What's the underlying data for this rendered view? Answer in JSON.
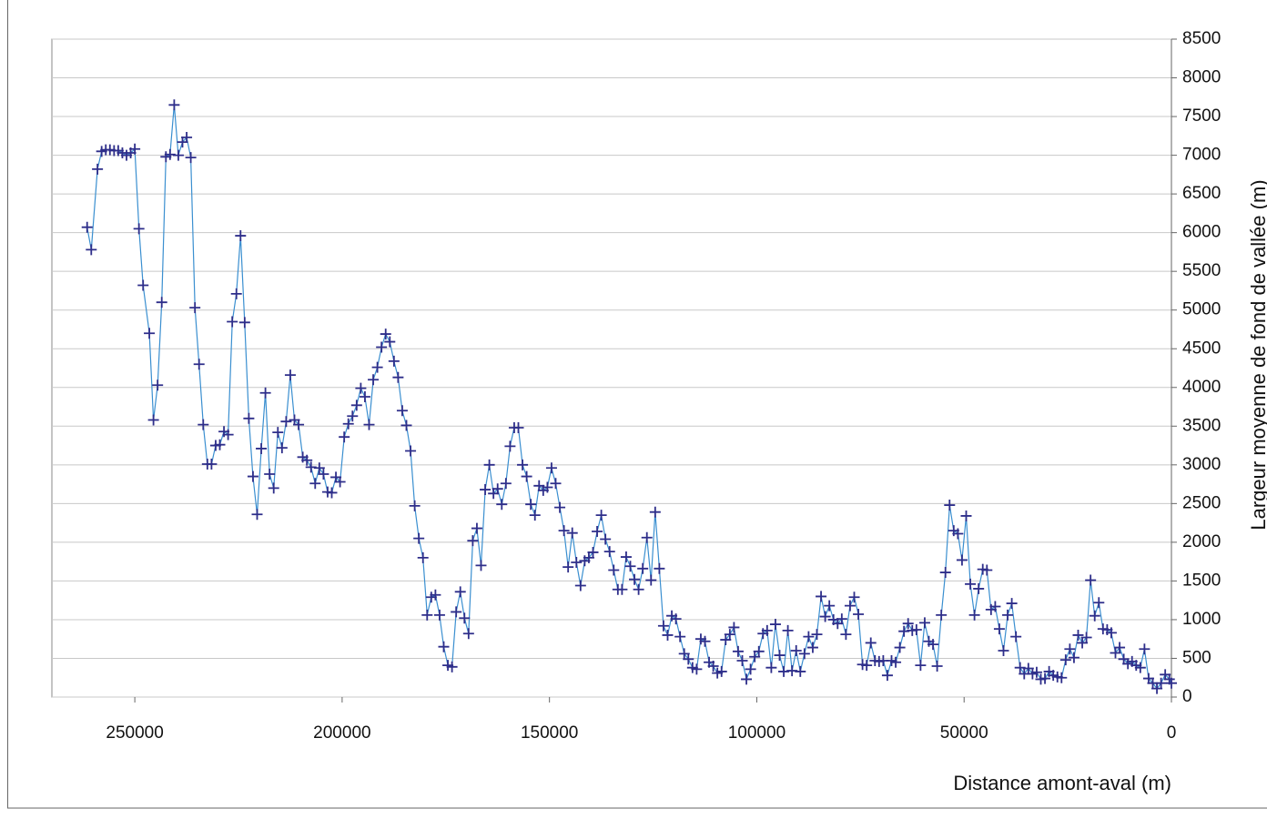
{
  "chart_data": {
    "type": "line",
    "x_label": "Distance amont-aval (m)",
    "y_label": "Largeur moyenne de fond de vallée (m)",
    "line_color": "#3a8fd0",
    "marker_color": "#2e2e8a",
    "grid": true,
    "xlim": [
      270000,
      0
    ],
    "xticks": [
      250000,
      200000,
      150000,
      100000,
      50000,
      0
    ],
    "ylim": [
      0,
      8500
    ],
    "yticks": [
      0,
      500,
      1000,
      1500,
      2000,
      2500,
      3000,
      3500,
      4000,
      4500,
      5000,
      5500,
      6000,
      6500,
      7000,
      7500,
      8000,
      8500
    ],
    "x": [
      261500,
      260500,
      259000,
      258000,
      257000,
      256000,
      255000,
      254000,
      253000,
      252000,
      251000,
      250000,
      249000,
      248000,
      246500,
      245500,
      244500,
      243500,
      242500,
      241500,
      240500,
      239500,
      238500,
      237500,
      236500,
      235500,
      234500,
      233500,
      232500,
      231500,
      230500,
      229500,
      228500,
      227500,
      226500,
      225500,
      224500,
      223500,
      222500,
      221500,
      220500,
      219500,
      218500,
      217500,
      216500,
      215500,
      214500,
      213500,
      212500,
      211500,
      210500,
      209500,
      208500,
      207500,
      206500,
      205500,
      204500,
      203500,
      202500,
      201500,
      200500,
      199500,
      198500,
      197500,
      196500,
      195500,
      194500,
      193500,
      192500,
      191500,
      190500,
      189500,
      188500,
      187500,
      186500,
      185500,
      184500,
      183500,
      182500,
      181500,
      180500,
      179500,
      178500,
      177500,
      176500,
      175500,
      174500,
      173500,
      172500,
      171500,
      170500,
      169500,
      168500,
      167500,
      166500,
      165500,
      164500,
      163500,
      162500,
      161500,
      160500,
      159500,
      158500,
      157500,
      156500,
      155500,
      154500,
      153500,
      152500,
      151500,
      150500,
      149500,
      148500,
      147500,
      146500,
      145500,
      144500,
      143500,
      142500,
      141500,
      140500,
      139500,
      138500,
      137500,
      136500,
      135500,
      134500,
      133500,
      132500,
      131500,
      130500,
      129500,
      128500,
      127500,
      126500,
      125500,
      124500,
      123500,
      122500,
      121500,
      120500,
      119500,
      118500,
      117500,
      116500,
      115500,
      114500,
      113500,
      112500,
      111500,
      110500,
      109500,
      108500,
      107500,
      106500,
      105500,
      104500,
      103500,
      102500,
      101500,
      100500,
      99500,
      98500,
      97500,
      96500,
      95500,
      94500,
      93500,
      92500,
      91500,
      90500,
      89500,
      88500,
      87500,
      86500,
      85500,
      84500,
      83500,
      82500,
      81500,
      80500,
      79500,
      78500,
      77500,
      76500,
      75500,
      74500,
      73500,
      72500,
      71500,
      70500,
      69500,
      68500,
      67500,
      66500,
      65500,
      64500,
      63500,
      62500,
      61500,
      60500,
      59500,
      58500,
      57500,
      56500,
      55500,
      54500,
      53500,
      52500,
      51500,
      50500,
      49500,
      48500,
      47500,
      46500,
      45500,
      44500,
      43500,
      42500,
      41500,
      40500,
      39500,
      38500,
      37500,
      36500,
      35500,
      34500,
      33500,
      32500,
      31500,
      30500,
      29500,
      28500,
      27500,
      26500,
      25500,
      24500,
      23500,
      22500,
      21500,
      20500,
      19500,
      18500,
      17500,
      16500,
      15500,
      14500,
      13500,
      12500,
      11500,
      10500,
      9500,
      8500,
      7500,
      6500,
      5500,
      4500,
      3500,
      2500,
      1500,
      500,
      0
    ],
    "values": [
      6070,
      5780,
      6820,
      7050,
      7070,
      7070,
      7060,
      7060,
      7030,
      7000,
      7030,
      7080,
      6050,
      5320,
      4700,
      3580,
      4030,
      5100,
      6980,
      7010,
      7650,
      7000,
      7170,
      7230,
      6970,
      5030,
      4300,
      3520,
      3010,
      3010,
      3250,
      3260,
      3430,
      3390,
      4850,
      5210,
      5960,
      4840,
      3600,
      2850,
      2360,
      3210,
      3930,
      2880,
      2700,
      3420,
      3220,
      3560,
      4160,
      3580,
      3520,
      3100,
      3060,
      2970,
      2760,
      2960,
      2880,
      2650,
      2640,
      2840,
      2780,
      3360,
      3530,
      3630,
      3770,
      3990,
      3880,
      3520,
      4100,
      4260,
      4520,
      4690,
      4590,
      4340,
      4130,
      3700,
      3510,
      3180,
      2470,
      2050,
      1800,
      1060,
      1290,
      1320,
      1060,
      650,
      410,
      390,
      1100,
      1360,
      1020,
      820,
      2020,
      2180,
      1700,
      2680,
      3000,
      2630,
      2690,
      2490,
      2760,
      3240,
      3480,
      3480,
      3000,
      2850,
      2490,
      2350,
      2730,
      2670,
      2710,
      2960,
      2760,
      2450,
      2150,
      1680,
      2120,
      1740,
      1440,
      1760,
      1800,
      1870,
      2140,
      2350,
      2040,
      1880,
      1640,
      1390,
      1390,
      1810,
      1690,
      1520,
      1390,
      1660,
      2060,
      1510,
      2390,
      1660,
      920,
      800,
      1050,
      1010,
      780,
      560,
      490,
      380,
      360,
      750,
      720,
      450,
      400,
      310,
      330,
      740,
      810,
      900,
      590,
      470,
      230,
      360,
      520,
      590,
      820,
      860,
      380,
      940,
      540,
      330,
      860,
      340,
      600,
      330,
      560,
      780,
      640,
      810,
      1300,
      1040,
      1180,
      1000,
      950,
      1010,
      810,
      1180,
      1290,
      1070,
      420,
      410,
      700,
      470,
      460,
      470,
      280,
      470,
      450,
      640,
      850,
      950,
      860,
      870,
      410,
      960,
      720,
      680,
      400,
      1060,
      1610,
      2480,
      2150,
      2110,
      1770,
      2340,
      1460,
      1060,
      1400,
      1650,
      1640,
      1130,
      1170,
      880,
      600,
      1060,
      1210,
      780,
      380,
      300,
      370,
      300,
      320,
      230,
      240,
      330,
      280,
      260,
      250,
      480,
      620,
      510,
      800,
      700,
      770,
      1510,
      1050,
      1220,
      880,
      870,
      830,
      570,
      640,
      490,
      430,
      460,
      410,
      380,
      620,
      240,
      180,
      110,
      180,
      290,
      230,
      180
    ]
  }
}
